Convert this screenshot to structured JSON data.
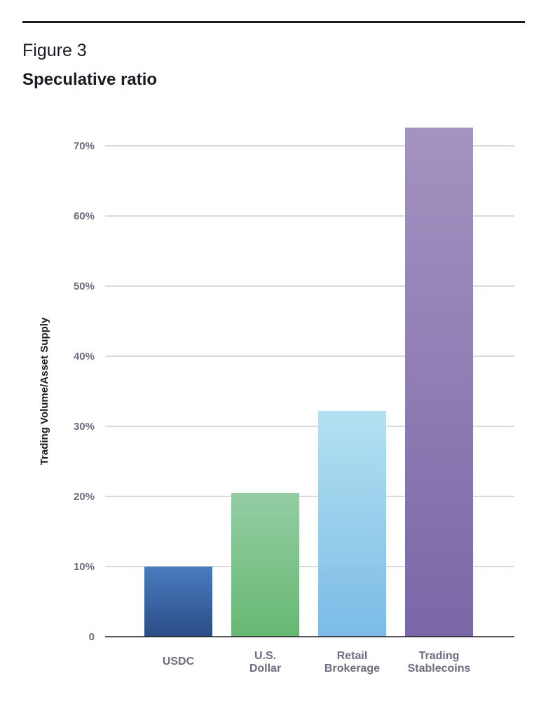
{
  "figure_label": "Figure 3",
  "chart_data": {
    "type": "bar",
    "title": "Speculative ratio",
    "xlabel": "",
    "ylabel": "Trading Volume/Asset Supply",
    "categories": [
      "USDC",
      "U.S. Dollar",
      "Retail Brokerage",
      "Trading Stablecoins"
    ],
    "category_lines": [
      [
        "USDC"
      ],
      [
        "U.S.",
        "Dollar"
      ],
      [
        "Retail",
        "Brokerage"
      ],
      [
        "Trading",
        "Stablecoins"
      ]
    ],
    "values": [
      10,
      20.5,
      32.2,
      72.6
    ],
    "unit": "%",
    "ylim": [
      0,
      70
    ],
    "yticks": [
      0,
      10,
      20,
      30,
      40,
      50,
      60,
      70
    ],
    "ytick_labels": [
      "0",
      "10%",
      "20%",
      "30%",
      "40%",
      "50%",
      "60%",
      "70%"
    ],
    "grid": true,
    "bar_colors": [
      [
        "#4a7cc0",
        "#2b4d86"
      ],
      [
        "#94cda3",
        "#66b872"
      ],
      [
        "#b4e1f1",
        "#7bbbe6"
      ],
      [
        "#a493c0",
        "#7a67a8"
      ]
    ]
  }
}
